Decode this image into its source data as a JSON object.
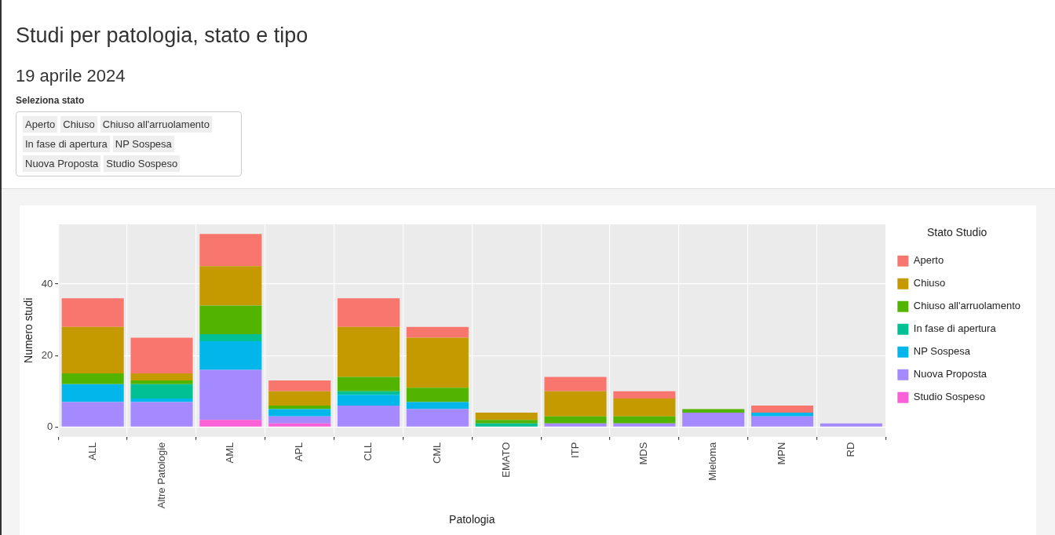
{
  "chart_data": {
    "type": "bar",
    "title": "Studi per patologia, stato e tipo",
    "subtitle": "19 aprile 2024",
    "annotations": [
      "Seleziona stato"
    ],
    "xlabel": "Patologia",
    "ylabel": "Numero studi",
    "legend_title": "Stato Studio",
    "categories": [
      "ALL",
      "Altre Patologie",
      "AML",
      "APL",
      "CLL",
      "CML",
      "EMATO",
      "ITP",
      "MDS",
      "Mieloma",
      "MPN",
      "RD"
    ],
    "stacked": true,
    "ylim": [
      -2.7,
      56.7
    ],
    "yticks": [
      0,
      20,
      40
    ],
    "grid": true,
    "legend": "right",
    "series": [
      {
        "name": "Studio Sospeso",
        "color": "#fb61d7",
        "values": [
          0,
          0,
          2,
          1,
          0,
          0,
          0,
          0,
          0,
          0,
          0,
          0
        ]
      },
      {
        "name": "Nuova Proposta",
        "color": "#a58aff",
        "values": [
          7,
          7,
          14,
          2,
          6,
          5,
          0,
          1,
          1,
          4,
          3,
          1
        ]
      },
      {
        "name": "NP Sospesa",
        "color": "#00b6eb",
        "values": [
          5,
          1,
          8,
          2,
          3,
          2,
          0,
          0,
          0,
          0,
          1,
          0
        ]
      },
      {
        "name": "In fase di apertura",
        "color": "#00c094",
        "values": [
          0,
          4,
          2,
          0,
          1,
          0,
          1,
          0,
          0,
          0,
          0,
          0
        ]
      },
      {
        "name": "Chiuso all'arruolamento",
        "color": "#53b400",
        "values": [
          3,
          1,
          8,
          1,
          4,
          4,
          1,
          2,
          2,
          1,
          0,
          0
        ]
      },
      {
        "name": "Chiuso",
        "color": "#c49a00",
        "values": [
          13,
          2,
          11,
          4,
          14,
          14,
          2,
          7,
          5,
          0,
          0,
          0
        ]
      },
      {
        "name": "Aperto",
        "color": "#f8766d",
        "values": [
          8,
          10,
          9,
          3,
          8,
          3,
          0,
          4,
          2,
          0,
          2,
          0
        ]
      }
    ]
  }
}
